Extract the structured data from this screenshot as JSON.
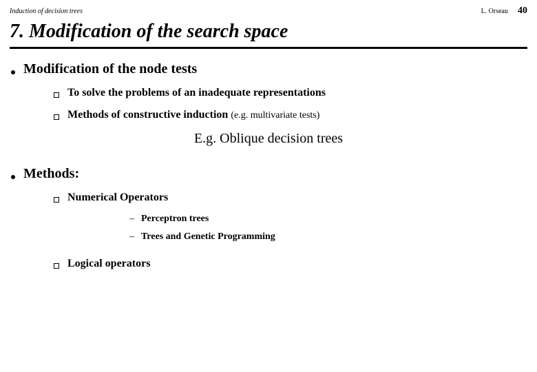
{
  "header": {
    "left": "Induction of decision trees",
    "author": "L. Orseau",
    "page": "40"
  },
  "title": "7. Modification of the search space",
  "section1": {
    "heading": "Modification of the node tests",
    "items": [
      {
        "text": "To solve the problems of an inadequate representations"
      },
      {
        "text": "Methods of constructive induction",
        "paren": "(e.g. multivariate tests)"
      }
    ],
    "example": "E.g. Oblique decision trees"
  },
  "section2": {
    "heading": "Methods:",
    "items": [
      {
        "text": "Numerical Operators",
        "sub": [
          "Perceptron trees",
          "Trees and Genetic Programming"
        ]
      },
      {
        "text": "Logical operators"
      }
    ]
  }
}
